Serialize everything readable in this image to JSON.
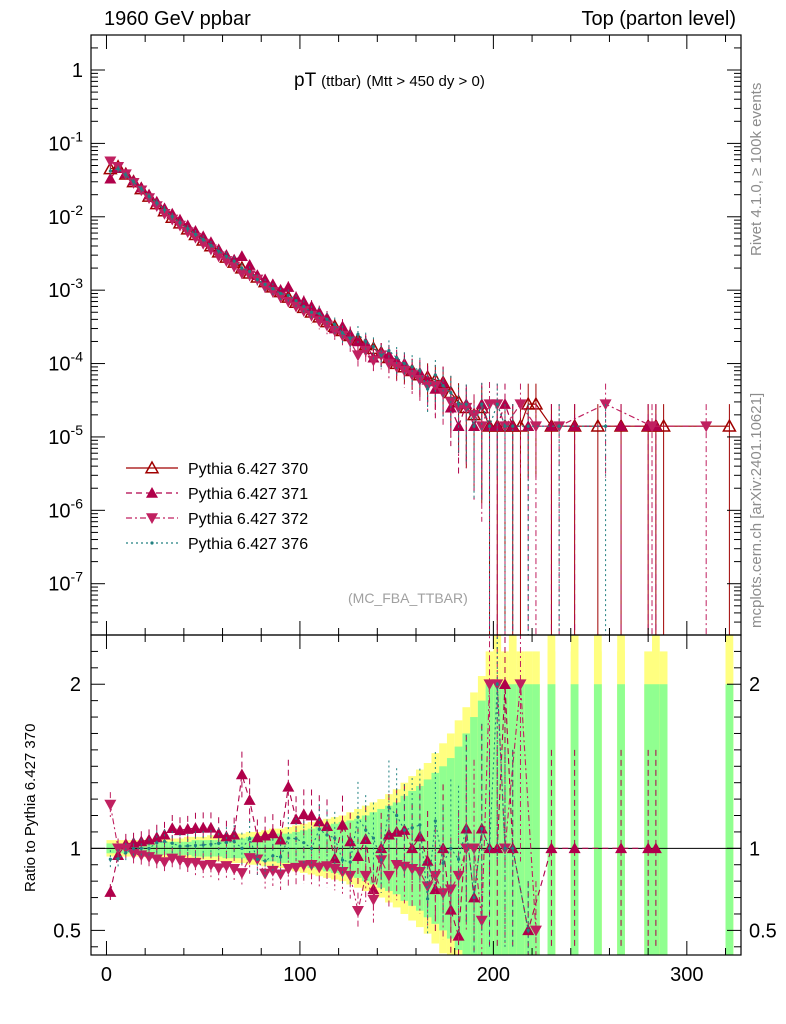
{
  "header": {
    "left": "1960 GeV ppbar",
    "right": "Top (parton level)"
  },
  "side_labels": {
    "rivet": "Rivet 4.1.0, ≥ 100k events",
    "mcplots": "mcplots.cern.ch [arXiv:2401.10621]"
  },
  "chart_data": {
    "type": "line",
    "title_main": "pT",
    "title_sub1": "(ttbar)",
    "title_sub2": "(Mtt > 450 dy > 0)",
    "analysis": "(MC_FBA_TTBAR)",
    "xlabel": "",
    "ylabel": "",
    "ratio_ylabel": "Ratio to Pythia 6.427 370",
    "xlim": [
      -8,
      328
    ],
    "ylim": [
      2e-08,
      3
    ],
    "ratio_ylim": [
      0.35,
      2.3
    ],
    "main_yticks": [
      {
        "value": 1,
        "label": "1"
      },
      {
        "value": 0.1,
        "label": "10^-1"
      },
      {
        "value": 0.01,
        "label": "10^-2"
      },
      {
        "value": 0.001,
        "label": "10^-3"
      },
      {
        "value": 0.0001,
        "label": "10^-4"
      },
      {
        "value": 1e-05,
        "label": "10^-5"
      },
      {
        "value": 1e-06,
        "label": "10^-6"
      },
      {
        "value": 1e-07,
        "label": "10^-7"
      }
    ],
    "ratio_yticks": [
      {
        "value": 0.5,
        "label": "0.5"
      },
      {
        "value": 1,
        "label": "1"
      },
      {
        "value": 2,
        "label": "2"
      }
    ],
    "xticks": [
      {
        "value": 0,
        "label": "0"
      },
      {
        "value": 100,
        "label": "100"
      },
      {
        "value": 200,
        "label": "200"
      },
      {
        "value": 300,
        "label": "300"
      }
    ],
    "legend_position": "lower-left",
    "bin_width": 4,
    "reference_series": "Pythia 6.427 370",
    "ratio_bands": {
      "outer_color": "#ffff80",
      "inner_color": "#90ff90",
      "outer_half_width": [
        0.05,
        0.05,
        0.05,
        0.05,
        0.05,
        0.06,
        0.06,
        0.06,
        0.06,
        0.06,
        0.07,
        0.07,
        0.07,
        0.08,
        0.08,
        0.08,
        0.09,
        0.09,
        0.1,
        0.1,
        0.11,
        0.12,
        0.12,
        0.13,
        0.14,
        0.15,
        0.16,
        0.17,
        0.18,
        0.19,
        0.2,
        0.22,
        0.24,
        0.26,
        0.28,
        0.3,
        0.33,
        0.36,
        0.4,
        0.44,
        0.48,
        0.52,
        0.58,
        0.64,
        0.7,
        0.78,
        0.86,
        0.95,
        1.05,
        1.2
      ],
      "inner_half_width": [
        0.03,
        0.03,
        0.03,
        0.03,
        0.03,
        0.04,
        0.04,
        0.04,
        0.04,
        0.04,
        0.04,
        0.05,
        0.05,
        0.05,
        0.05,
        0.06,
        0.06,
        0.06,
        0.07,
        0.07,
        0.08,
        0.08,
        0.09,
        0.09,
        0.1,
        0.11,
        0.12,
        0.13,
        0.14,
        0.15,
        0.16,
        0.17,
        0.18,
        0.2,
        0.22,
        0.24,
        0.26,
        0.28,
        0.32,
        0.35,
        0.38,
        0.42,
        0.46,
        0.5,
        0.55,
        0.62,
        0.7,
        0.8,
        0.9,
        1.0
      ],
      "sparse_bins_x": [
        202,
        210,
        230,
        242,
        254,
        266,
        284,
        322
      ],
      "sparse_outer_top": 2.3,
      "sparse_inner_top": 2.0
    },
    "series": [
      {
        "name": "Pythia 6.427 370",
        "color": "#a00000",
        "dash": "",
        "marker": "triangle-up-open",
        "x": [
          2,
          6,
          10,
          14,
          18,
          22,
          26,
          30,
          34,
          38,
          42,
          46,
          50,
          54,
          58,
          62,
          66,
          70,
          74,
          78,
          82,
          86,
          90,
          94,
          98,
          102,
          106,
          110,
          114,
          118,
          122,
          126,
          130,
          134,
          138,
          142,
          146,
          150,
          154,
          158,
          162,
          166,
          170,
          174,
          178,
          182,
          186,
          190,
          194,
          198,
          202,
          206,
          210,
          214,
          218,
          222,
          230,
          242,
          254,
          266,
          280,
          284,
          288,
          322
        ],
        "y": [
          0.045,
          0.048,
          0.038,
          0.03,
          0.024,
          0.019,
          0.015,
          0.012,
          0.0098,
          0.0082,
          0.0068,
          0.0057,
          0.0048,
          0.004,
          0.0033,
          0.0028,
          0.0024,
          0.002,
          0.0017,
          0.0015,
          0.0013,
          0.0011,
          0.00095,
          0.0008,
          0.00068,
          0.00058,
          0.0005,
          0.00043,
          0.00037,
          0.00032,
          0.00028,
          0.00024,
          0.00021,
          0.00018,
          0.00016,
          0.00014,
          0.00012,
          0.0001,
          9e-05,
          8e-05,
          7e-05,
          6.5e-05,
          6e-05,
          5.5e-05,
          4e-05,
          3e-05,
          2.5e-05,
          2e-05,
          2.5e-05,
          1.4e-05,
          1.4e-05,
          1.4e-05,
          1.4e-05,
          1.4e-05,
          2.8e-05,
          2.8e-05,
          1.4e-05,
          1.4e-05,
          1.4e-05,
          1.4e-05,
          1.4e-05,
          1.4e-05,
          1.4e-05,
          1.4e-05
        ],
        "err": [
          0.1,
          0.1,
          0.1,
          0.1,
          0.1,
          0.1,
          0.12,
          0.12,
          0.12,
          0.12,
          0.12,
          0.14,
          0.14,
          0.14,
          0.15,
          0.15,
          0.16,
          0.16,
          0.17,
          0.17,
          0.18,
          0.18,
          0.19,
          0.2,
          0.2,
          0.21,
          0.22,
          0.23,
          0.24,
          0.25,
          0.26,
          0.28,
          0.3,
          0.32,
          0.34,
          0.36,
          0.38,
          0.4,
          0.42,
          0.45,
          0.5,
          0.55,
          0.6,
          0.65,
          0.7,
          0.8,
          0.85,
          0.9,
          0.95,
          1.0,
          1.0,
          1.0,
          1.0,
          1.0,
          0.9,
          0.9,
          1.0,
          1.0,
          1.0,
          1.0,
          1.0,
          1.0,
          1.0,
          1.0
        ]
      },
      {
        "name": "Pythia 6.427 371",
        "color": "#b0004a",
        "dash": "6,4",
        "marker": "triangle-up",
        "x": [
          2,
          6,
          10,
          14,
          18,
          22,
          26,
          30,
          34,
          38,
          42,
          46,
          50,
          54,
          58,
          62,
          66,
          70,
          74,
          78,
          82,
          86,
          90,
          94,
          98,
          102,
          106,
          110,
          114,
          118,
          122,
          126,
          130,
          134,
          138,
          142,
          146,
          150,
          154,
          158,
          162,
          166,
          170,
          174,
          178,
          182,
          186,
          190,
          194,
          198,
          202,
          206,
          210,
          218,
          230,
          242,
          266,
          280,
          284
        ],
        "y": [
          0.033,
          0.046,
          0.039,
          0.031,
          0.025,
          0.02,
          0.016,
          0.013,
          0.011,
          0.0091,
          0.0076,
          0.0064,
          0.0054,
          0.0045,
          0.0036,
          0.003,
          0.0026,
          0.0029,
          0.0022,
          0.0016,
          0.0014,
          0.0012,
          0.001,
          0.0011,
          0.0008,
          0.0007,
          0.0006,
          0.0005,
          0.00042,
          0.0003,
          0.00032,
          0.00025,
          0.0002,
          0.00019,
          0.00012,
          0.00014,
          0.00013,
          0.00011,
          0.0001,
          8e-05,
          7.5e-05,
          6e-05,
          4.5e-05,
          5.5e-05,
          2.5e-05,
          1.4e-05,
          2.8e-05,
          1.4e-05,
          2.8e-05,
          1.4e-05,
          1.4e-05,
          2.8e-05,
          1.4e-05,
          1.4e-05,
          1.4e-05,
          1.4e-05,
          1.4e-05,
          1.4e-05,
          1.4e-05
        ],
        "err": [
          0.11,
          0.1,
          0.1,
          0.1,
          0.1,
          0.1,
          0.12,
          0.12,
          0.12,
          0.12,
          0.12,
          0.14,
          0.14,
          0.14,
          0.15,
          0.15,
          0.16,
          0.16,
          0.17,
          0.17,
          0.18,
          0.18,
          0.19,
          0.2,
          0.2,
          0.21,
          0.22,
          0.23,
          0.24,
          0.25,
          0.26,
          0.28,
          0.3,
          0.32,
          0.34,
          0.36,
          0.38,
          0.4,
          0.42,
          0.45,
          0.5,
          0.55,
          0.6,
          0.65,
          0.7,
          0.8,
          0.85,
          0.9,
          0.95,
          1.0,
          1.0,
          0.9,
          1.0,
          1.0,
          1.0,
          1.0,
          1.0,
          1.0,
          1.0
        ]
      },
      {
        "name": "Pythia 6.427 372",
        "color": "#c02060",
        "dash": "6,3,2,3",
        "marker": "triangle-down",
        "x": [
          2,
          6,
          10,
          14,
          18,
          22,
          26,
          30,
          34,
          38,
          42,
          46,
          50,
          54,
          58,
          62,
          66,
          70,
          74,
          78,
          82,
          86,
          90,
          94,
          98,
          102,
          106,
          110,
          114,
          118,
          122,
          126,
          130,
          134,
          138,
          142,
          146,
          150,
          154,
          158,
          162,
          166,
          170,
          174,
          178,
          182,
          186,
          190,
          194,
          198,
          202,
          206,
          214,
          222,
          234,
          258,
          282,
          310
        ],
        "y": [
          0.057,
          0.048,
          0.038,
          0.029,
          0.023,
          0.018,
          0.014,
          0.011,
          0.0092,
          0.0076,
          0.0062,
          0.0052,
          0.0043,
          0.0036,
          0.0029,
          0.0025,
          0.0021,
          0.0017,
          0.0016,
          0.0014,
          0.0011,
          0.00095,
          0.0008,
          0.0007,
          0.0006,
          0.00052,
          0.00045,
          0.00038,
          0.00033,
          0.00028,
          0.00024,
          0.0002,
          0.00013,
          0.00015,
          0.00011,
          0.00013,
          0.0001,
          9e-05,
          8e-05,
          7e-05,
          6e-05,
          5e-05,
          5e-05,
          4e-05,
          3e-05,
          2.5e-05,
          2.5e-05,
          2e-05,
          1.4e-05,
          2.8e-05,
          2.8e-05,
          1.4e-05,
          2.8e-05,
          1.4e-05,
          1.4e-05,
          2.8e-05,
          1.4e-05,
          1.4e-05
        ],
        "err": [
          0.1,
          0.1,
          0.1,
          0.1,
          0.1,
          0.1,
          0.12,
          0.12,
          0.12,
          0.12,
          0.12,
          0.14,
          0.14,
          0.14,
          0.15,
          0.15,
          0.16,
          0.16,
          0.17,
          0.17,
          0.18,
          0.18,
          0.19,
          0.2,
          0.2,
          0.21,
          0.22,
          0.23,
          0.24,
          0.25,
          0.26,
          0.28,
          0.3,
          0.32,
          0.34,
          0.36,
          0.38,
          0.4,
          0.42,
          0.45,
          0.5,
          0.55,
          0.6,
          0.65,
          0.7,
          0.8,
          0.85,
          0.9,
          0.95,
          1.0,
          0.9,
          1.0,
          0.9,
          1.0,
          1.0,
          0.9,
          1.0,
          1.0
        ]
      },
      {
        "name": "Pythia 6.427 376",
        "color": "#208080",
        "dash": "2,3",
        "marker": "dot",
        "x": [
          2,
          6,
          10,
          14,
          18,
          22,
          26,
          30,
          34,
          38,
          42,
          46,
          50,
          54,
          58,
          62,
          66,
          70,
          74,
          78,
          82,
          86,
          90,
          94,
          98,
          102,
          106,
          110,
          114,
          118,
          122,
          126,
          130,
          134,
          138,
          142,
          146,
          150,
          154,
          158,
          162,
          166,
          170,
          174,
          178,
          182,
          186,
          190,
          194,
          198,
          202,
          206,
          210,
          218,
          234,
          258
        ],
        "y": [
          0.042,
          0.045,
          0.037,
          0.03,
          0.024,
          0.019,
          0.0155,
          0.0125,
          0.0101,
          0.0083,
          0.0069,
          0.0058,
          0.0049,
          0.0041,
          0.0034,
          0.0029,
          0.0025,
          0.002,
          0.0018,
          0.0014,
          0.0012,
          0.00105,
          0.0009,
          0.00085,
          0.00072,
          0.0006,
          0.0005,
          0.00048,
          0.0004,
          0.00034,
          0.00026,
          0.00022,
          0.00025,
          0.0002,
          0.00017,
          0.00013,
          0.00015,
          0.00012,
          0.0001,
          9e-05,
          8e-05,
          4.5e-05,
          7e-05,
          5e-05,
          4e-05,
          2.8e-05,
          2.8e-05,
          1.4e-05,
          2.8e-05,
          1.4e-05,
          2.8e-05,
          1.4e-05,
          1.4e-05,
          1.4e-05,
          1.4e-05,
          1.4e-05
        ],
        "err": [
          0.1,
          0.1,
          0.1,
          0.1,
          0.1,
          0.1,
          0.12,
          0.12,
          0.12,
          0.12,
          0.12,
          0.14,
          0.14,
          0.14,
          0.15,
          0.15,
          0.16,
          0.16,
          0.17,
          0.17,
          0.18,
          0.18,
          0.19,
          0.2,
          0.2,
          0.21,
          0.22,
          0.23,
          0.24,
          0.25,
          0.26,
          0.28,
          0.3,
          0.32,
          0.34,
          0.36,
          0.38,
          0.4,
          0.42,
          0.45,
          0.5,
          0.55,
          0.6,
          0.65,
          0.7,
          0.8,
          0.85,
          0.9,
          0.95,
          1.0,
          0.9,
          1.0,
          1.0,
          1.0,
          1.0,
          1.0
        ]
      }
    ]
  }
}
